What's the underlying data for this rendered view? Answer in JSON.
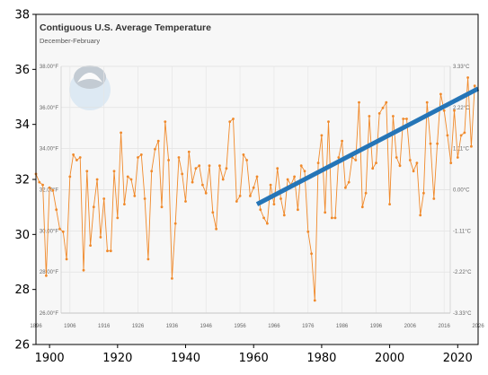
{
  "chart_data": {
    "type": "line",
    "xlim": [
      1896,
      2026
    ],
    "ylim": [
      26,
      38
    ],
    "x_ticks": [
      1900,
      1920,
      1940,
      1960,
      1980,
      2000,
      2020
    ],
    "y_ticks": [
      26,
      28,
      30,
      32,
      34,
      36,
      38
    ],
    "grid": false,
    "inset": {
      "title": "Contiguous U.S. Average Temperature",
      "subtitle": "December-February",
      "left_ticks": [
        {
          "v": 38,
          "label": "38.00°F"
        },
        {
          "v": 36,
          "label": "36.00°F"
        },
        {
          "v": 34,
          "label": "34.00°F"
        },
        {
          "v": 32,
          "label": "32.00°F"
        },
        {
          "v": 30,
          "label": "30.00°F"
        },
        {
          "v": 28,
          "label": "28.00°F"
        },
        {
          "v": 26,
          "label": "26.00°F"
        }
      ],
      "right_ticks": [
        {
          "v": 38,
          "label": "3.33°C"
        },
        {
          "v": 36,
          "label": "2.22°C"
        },
        {
          "v": 34,
          "label": "1.11°C"
        },
        {
          "v": 32,
          "label": "0.00°C"
        },
        {
          "v": 30,
          "label": "-1.11°C"
        },
        {
          "v": 28,
          "label": "-2.22°C"
        },
        {
          "v": 26,
          "label": "-3.33°C"
        }
      ],
      "x_ticks": [
        "1896",
        "1906",
        "1916",
        "1926",
        "1936",
        "1946",
        "1956",
        "1966",
        "1976",
        "1986",
        "1996",
        "2006",
        "2016",
        "2026"
      ],
      "line_color": "#f0892a",
      "grid": true
    },
    "series": [
      {
        "type": "line",
        "color": "#f0892a",
        "x": [
          1896,
          1897,
          1898,
          1899,
          1900,
          1901,
          1902,
          1903,
          1904,
          1905,
          1906,
          1907,
          1908,
          1909,
          1910,
          1911,
          1912,
          1913,
          1914,
          1915,
          1916,
          1917,
          1918,
          1919,
          1920,
          1921,
          1922,
          1923,
          1924,
          1925,
          1926,
          1927,
          1928,
          1929,
          1930,
          1931,
          1932,
          1933,
          1934,
          1935,
          1936,
          1937,
          1938,
          1939,
          1940,
          1941,
          1942,
          1943,
          1944,
          1945,
          1946,
          1947,
          1948,
          1949,
          1950,
          1951,
          1952,
          1953,
          1954,
          1955,
          1956,
          1957,
          1958,
          1959,
          1960,
          1961,
          1962,
          1963,
          1964,
          1965,
          1966,
          1967,
          1968,
          1969,
          1970,
          1971,
          1972,
          1973,
          1974,
          1975,
          1976,
          1977,
          1978,
          1979,
          1980,
          1981,
          1982,
          1983,
          1984,
          1985,
          1986,
          1987,
          1988,
          1989,
          1990,
          1991,
          1992,
          1993,
          1994,
          1995,
          1996,
          1997,
          1998,
          1999,
          2000,
          2001,
          2002,
          2003,
          2004,
          2005,
          2006,
          2007,
          2008,
          2009,
          2010,
          2011,
          2012,
          2013,
          2014,
          2015,
          2016,
          2017,
          2018,
          2019,
          2020,
          2021,
          2022,
          2023,
          2024,
          2025
        ],
        "y": [
          32.2,
          31.9,
          31.8,
          28.5,
          31.7,
          31.6,
          30.9,
          30.2,
          30.1,
          29.1,
          32.1,
          32.9,
          32.7,
          32.8,
          28.7,
          32.3,
          29.6,
          31.0,
          32.0,
          29.9,
          31.3,
          29.4,
          29.4,
          32.3,
          30.6,
          33.7,
          31.1,
          32.1,
          32.0,
          31.4,
          32.8,
          32.9,
          31.3,
          29.1,
          32.3,
          33.1,
          33.4,
          31.0,
          34.1,
          32.7,
          28.4,
          30.4,
          32.8,
          32.2,
          31.2,
          33.0,
          31.9,
          32.4,
          32.5,
          31.8,
          31.5,
          32.5,
          30.8,
          30.2,
          32.5,
          32.0,
          32.4,
          34.1,
          34.2,
          31.2,
          31.4,
          32.9,
          32.7,
          31.4,
          31.7,
          32.1,
          30.9,
          30.6,
          30.4,
          31.8,
          31.1,
          32.4,
          31.3,
          30.7,
          32.0,
          31.8,
          32.1,
          30.9,
          32.5,
          32.3,
          30.1,
          29.3,
          27.6,
          32.6,
          33.6,
          30.8,
          34.1,
          30.6,
          30.6,
          32.8,
          33.4,
          31.7,
          31.9,
          32.8,
          32.7,
          34.8,
          31.0,
          31.5,
          34.3,
          32.4,
          32.6,
          34.4,
          34.6,
          34.8,
          31.1,
          34.3,
          32.8,
          32.5,
          34.2,
          34.2,
          32.7,
          32.3,
          32.6,
          30.7,
          31.5,
          34.8,
          33.3,
          31.3,
          33.3,
          35.1,
          34.5,
          33.6,
          32.6,
          34.5,
          32.8,
          33.6,
          33.7,
          35.7,
          33.2,
          35.4
        ]
      },
      {
        "type": "line",
        "color": "#2575b7",
        "x": [
          1961,
          2026
        ],
        "y": [
          31.1,
          35.3
        ]
      }
    ]
  }
}
